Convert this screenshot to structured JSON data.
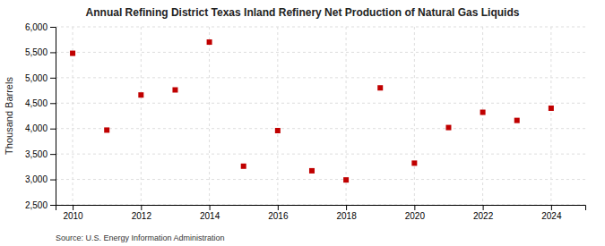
{
  "chart_data": {
    "type": "scatter",
    "title": "Annual Refining District Texas Inland Refinery Net Production of Natural Gas Liquids",
    "ylabel": "Thousand Barrels",
    "source": "Source: U.S. Energy Information Administration",
    "x": [
      2010,
      2011,
      2012,
      2013,
      2014,
      2015,
      2016,
      2017,
      2018,
      2019,
      2020,
      2021,
      2022,
      2023,
      2024
    ],
    "values": [
      5480,
      3970,
      4660,
      4760,
      5700,
      3260,
      3960,
      3170,
      2990,
      4800,
      3320,
      4020,
      4320,
      4160,
      4400
    ],
    "color": "#c00000",
    "marker": "square",
    "xlim": [
      2009.5,
      2025.0
    ],
    "xticks": [
      2010,
      2012,
      2014,
      2016,
      2018,
      2020,
      2022,
      2024
    ],
    "ylim": [
      2500,
      6000
    ],
    "yticks": [
      {
        "value": 2500,
        "label": "2,500"
      },
      {
        "value": 3000,
        "label": "3,000"
      },
      {
        "value": 3500,
        "label": "3,500"
      },
      {
        "value": 4000,
        "label": "4,000"
      },
      {
        "value": 4500,
        "label": "4,500"
      },
      {
        "value": 5000,
        "label": "5,000"
      },
      {
        "value": 5500,
        "label": "5,500"
      },
      {
        "value": 6000,
        "label": "6,000"
      }
    ],
    "grid": true
  }
}
